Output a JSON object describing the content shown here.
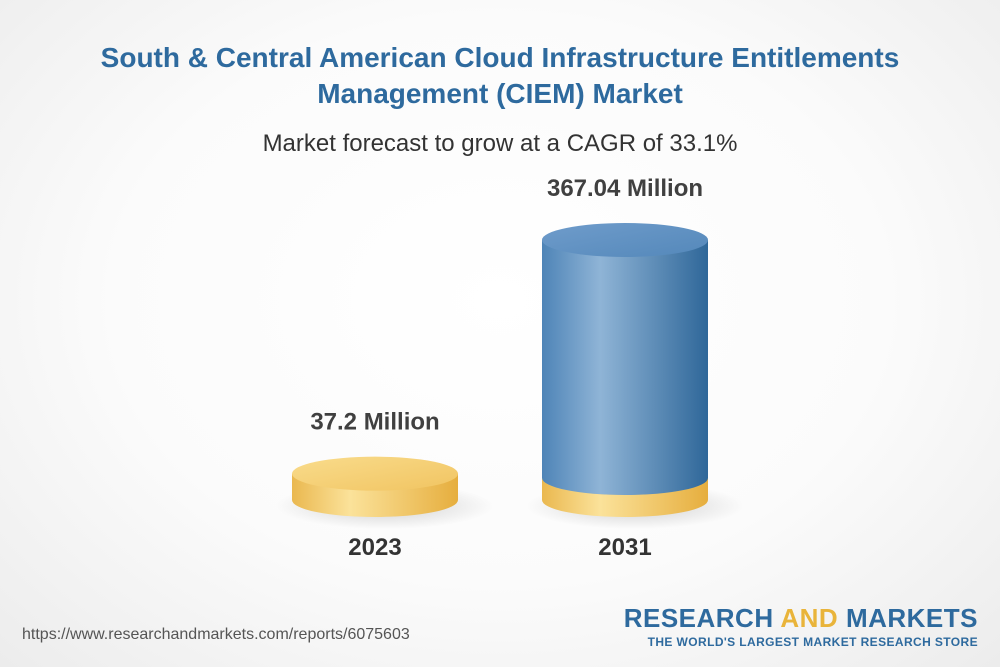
{
  "header": {
    "title": "South & Central American Cloud Infrastructure Entitlements Management (CIEM) Market",
    "subtitle": "Market forecast to grow at a CAGR of 33.1%"
  },
  "chart_data": {
    "type": "bar",
    "categories": [
      "2023",
      "2031"
    ],
    "values": [
      37.2,
      367.04
    ],
    "data_labels": [
      "37.2 Million",
      "367.04 Million"
    ],
    "unit": "Million",
    "ylim": [
      0,
      367.04
    ],
    "grid": false,
    "legend": "none"
  },
  "colors": {
    "gold": "#f3c867",
    "blue": "#5a8fc0",
    "title": "#2e6a9e"
  },
  "footer": {
    "url": "https://www.researchandmarkets.com/reports/6075603",
    "brand_part1": "RESEARCH ",
    "brand_part2": "AND",
    "brand_part3": " MARKETS",
    "tagline": "THE WORLD'S LARGEST MARKET RESEARCH STORE"
  }
}
